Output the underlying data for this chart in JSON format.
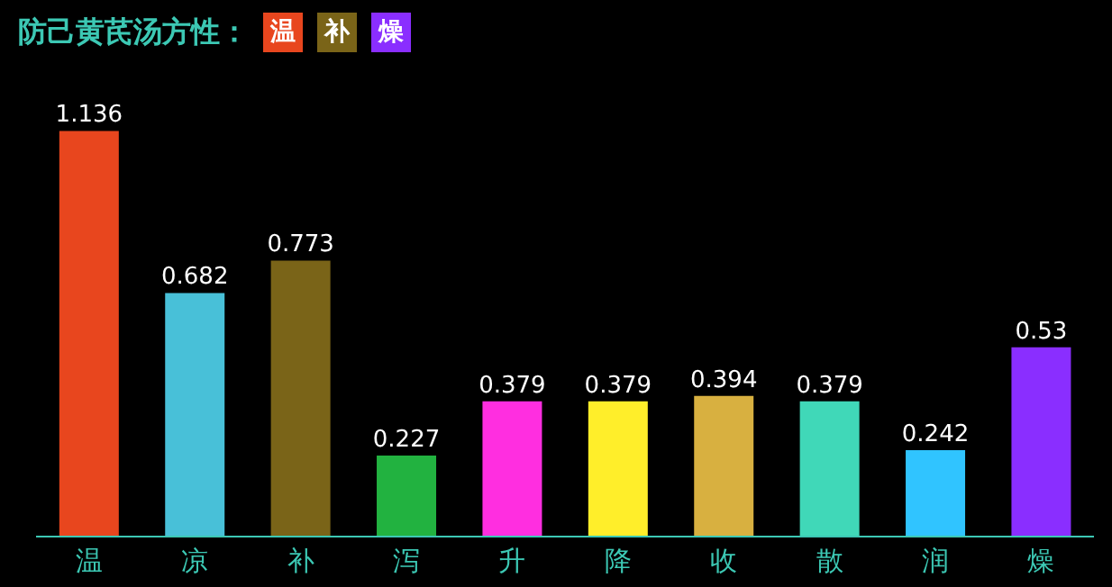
{
  "chart_data": {
    "type": "bar",
    "title": "防己黄芪汤方性：",
    "annotations": [
      "温",
      "补",
      "燥"
    ],
    "categories": [
      "温",
      "凉",
      "补",
      "泻",
      "升",
      "降",
      "收",
      "散",
      "润",
      "燥"
    ],
    "values": [
      1.136,
      0.682,
      0.773,
      0.227,
      0.379,
      0.379,
      0.394,
      0.379,
      0.242,
      0.53
    ],
    "colors": [
      "#e8461e",
      "#48c0d8",
      "#7a6418",
      "#22b240",
      "#ff2ee0",
      "#ffee2a",
      "#d8b040",
      "#40d8b8",
      "#30c4ff",
      "#8a2eff"
    ],
    "data_labels": true
  }
}
